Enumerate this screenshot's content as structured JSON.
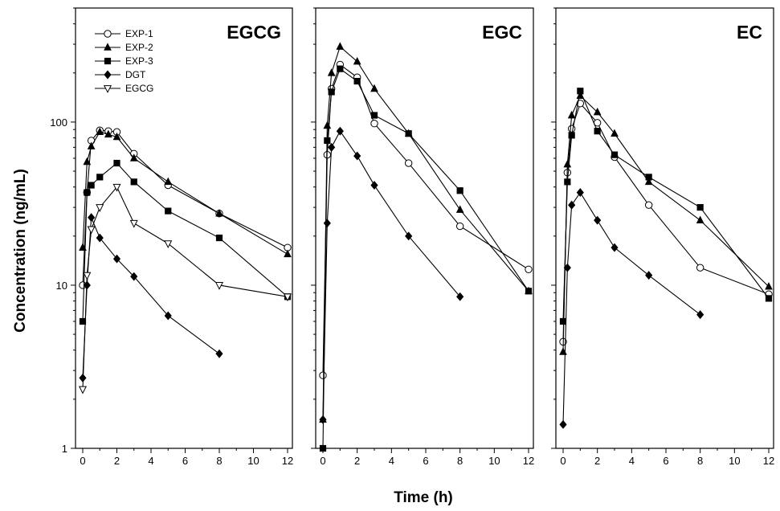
{
  "figure": {
    "ylabel": "Concentration (ng/mL)",
    "xlabel": "Time (h)"
  },
  "legend": {
    "placement": "top-left of first panel",
    "entries": [
      {
        "name": "EXP-1",
        "marker": "circle-open"
      },
      {
        "name": "EXP-2",
        "marker": "triangle-up-filled"
      },
      {
        "name": "EXP-3",
        "marker": "square-filled"
      },
      {
        "name": "DGT",
        "marker": "diamond-filled"
      },
      {
        "name": "EGCG",
        "marker": "triangle-down-open"
      }
    ]
  },
  "colors": {
    "line": "#000000",
    "marker_fill": "#000000",
    "open_fill": "#ffffff"
  },
  "chart_data": [
    {
      "type": "line",
      "title": "EGCG",
      "xlim": [
        0,
        12
      ],
      "xticks": [
        0,
        2,
        4,
        6,
        8,
        10,
        12
      ],
      "yscale": "log",
      "ylim": [
        1,
        500
      ],
      "yticks": [
        1,
        10,
        100
      ],
      "series": [
        {
          "name": "EXP-1",
          "marker": "circle-open",
          "x": [
            0,
            0.25,
            0.5,
            1,
            1.5,
            2,
            3,
            5,
            8,
            12
          ],
          "y": [
            10,
            37,
            77,
            89,
            88,
            87,
            64,
            41,
            27.5,
            17
          ]
        },
        {
          "name": "EXP-2",
          "marker": "triangle-up-filled",
          "x": [
            0,
            0.25,
            0.5,
            1,
            1.5,
            2,
            3,
            5,
            8,
            12
          ],
          "y": [
            17,
            57,
            71,
            87,
            84,
            81,
            60,
            43,
            27.5,
            15.5
          ]
        },
        {
          "name": "EXP-3",
          "marker": "square-filled",
          "x": [
            0,
            0.25,
            0.5,
            1,
            2,
            3,
            5,
            8,
            12
          ],
          "y": [
            6,
            37,
            41,
            46,
            56,
            43,
            28.5,
            19.5,
            8.5
          ]
        },
        {
          "name": "DGT",
          "marker": "diamond-filled",
          "x": [
            0,
            0.25,
            0.5,
            1,
            2,
            3,
            5,
            8
          ],
          "y": [
            2.7,
            10,
            26,
            19.5,
            14.5,
            11.3,
            6.5,
            3.8
          ]
        },
        {
          "name": "EGCG",
          "marker": "triangle-down-open",
          "x": [
            0,
            0.25,
            0.5,
            1,
            2,
            3,
            5,
            8,
            12
          ],
          "y": [
            2.3,
            11.5,
            22,
            30,
            40,
            24,
            18,
            10,
            8.5
          ]
        }
      ]
    },
    {
      "type": "line",
      "title": "EGC",
      "xlim": [
        0,
        12
      ],
      "xticks": [
        0,
        2,
        4,
        6,
        8,
        10,
        12
      ],
      "yscale": "log",
      "ylim": [
        1,
        500
      ],
      "yticks": [
        1,
        10,
        100
      ],
      "series": [
        {
          "name": "EXP-1",
          "marker": "circle-open",
          "x": [
            0,
            0.25,
            0.5,
            1,
            2,
            3,
            5,
            8,
            12
          ],
          "y": [
            2.8,
            63,
            160,
            225,
            188,
            98,
            56,
            23,
            12.5
          ]
        },
        {
          "name": "EXP-2",
          "marker": "triangle-up-filled",
          "x": [
            0,
            0.25,
            0.5,
            1,
            2,
            3,
            5,
            8,
            12
          ],
          "y": [
            1.5,
            95,
            200,
            290,
            235,
            160,
            85,
            29,
            9.2
          ]
        },
        {
          "name": "EXP-3",
          "marker": "square-filled",
          "x": [
            0,
            0.25,
            0.5,
            1,
            2,
            3,
            5,
            8,
            12
          ],
          "y": [
            1,
            77,
            153,
            212,
            178,
            110,
            85,
            38,
            9.2
          ]
        },
        {
          "name": "DGT",
          "marker": "diamond-filled",
          "x": [
            0,
            0.25,
            0.5,
            1,
            2,
            3,
            5,
            8
          ],
          "y": [
            1.5,
            24,
            70,
            88,
            62,
            41,
            20,
            8.5
          ]
        }
      ]
    },
    {
      "type": "line",
      "title": "EC",
      "xlim": [
        0,
        12
      ],
      "xticks": [
        0,
        2,
        4,
        6,
        8,
        10,
        12
      ],
      "yscale": "log",
      "ylim": [
        1,
        500
      ],
      "yticks": [
        1,
        10,
        100
      ],
      "series": [
        {
          "name": "EXP-1",
          "marker": "circle-open",
          "x": [
            0,
            0.25,
            0.5,
            1,
            2,
            3,
            5,
            8,
            12
          ],
          "y": [
            4.5,
            49,
            91,
            130,
            99,
            61,
            31,
            12.8,
            8.8
          ]
        },
        {
          "name": "EXP-2",
          "marker": "triangle-up-filled",
          "x": [
            0,
            0.25,
            0.5,
            1,
            2,
            3,
            5,
            8,
            12
          ],
          "y": [
            3.9,
            55,
            110,
            145,
            115,
            85,
            43,
            25,
            9.8
          ]
        },
        {
          "name": "EXP-3",
          "marker": "square-filled",
          "x": [
            0,
            0.25,
            0.5,
            1,
            2,
            3,
            5,
            8,
            12
          ],
          "y": [
            6,
            43,
            83,
            155,
            88,
            63,
            46,
            30,
            8.3
          ]
        },
        {
          "name": "DGT",
          "marker": "diamond-filled",
          "x": [
            0,
            0.25,
            0.5,
            1,
            2,
            3,
            5,
            8
          ],
          "y": [
            1.4,
            12.8,
            31,
            37,
            25,
            17,
            11.5,
            6.6
          ]
        }
      ]
    }
  ]
}
